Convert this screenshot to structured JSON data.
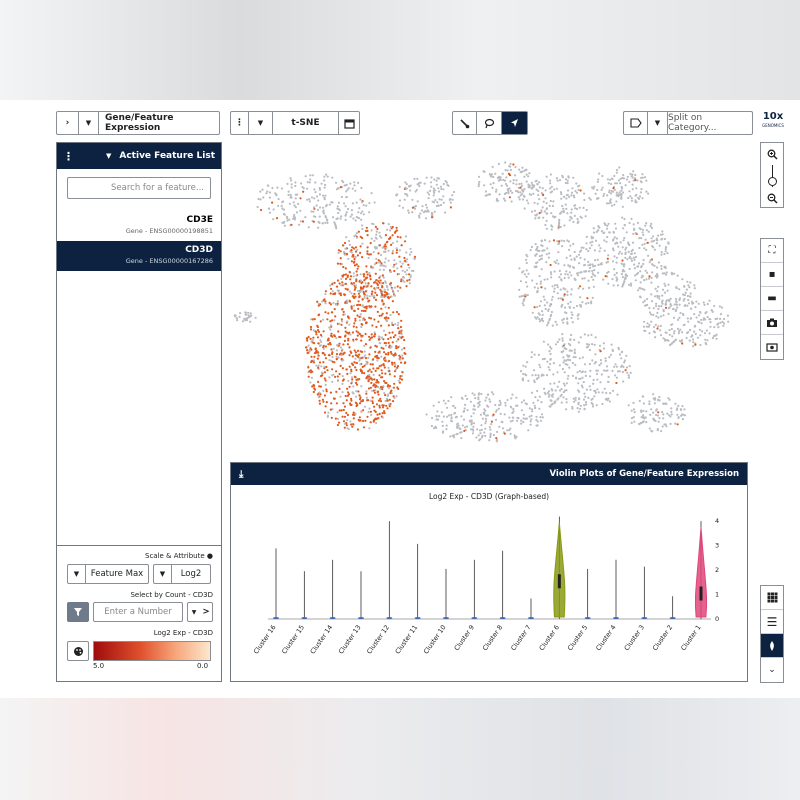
{
  "colors": {
    "navy": "#0d2240",
    "highlight": "#e05a1e",
    "point": "#b9bcc1",
    "cluster1": "#e0457a",
    "cluster6": "#8a9a14"
  },
  "toolbar": {
    "projection_label": "Gene/Feature Expression",
    "plot_type_label": "t-SNE",
    "split_placeholder": "Split on Category...",
    "logo_top": "10x",
    "logo_bottom": "GENOMICS"
  },
  "active_features": {
    "title": "Active Feature List",
    "search_placeholder": "Search for a feature...",
    "items": [
      {
        "name": "CD3E",
        "sub": "Gene - ENSG00000198851"
      },
      {
        "name": "CD3D",
        "sub": "Gene - ENSG00000167286"
      }
    ]
  },
  "controls": {
    "scale_label": "Scale & Attribute",
    "scale_value": "Log2",
    "attribute_value": "Feature Max",
    "select_label": "Select by Count - CD3D",
    "number_placeholder": "Enter a Number",
    "operator": ">",
    "legend_label": "Log2 Exp - CD3D",
    "legend_min": "0.0",
    "legend_max": "5.0"
  },
  "violin": {
    "panel_title": "Violin Plots of Gene/Feature Expression",
    "chart_title": "Log2 Exp - CD3D (Graph-based)"
  },
  "chart_data": {
    "type": "violin",
    "title": "Log2 Exp - CD3D (Graph-based)",
    "ylim": [
      0,
      4
    ],
    "yticks": [
      "0",
      "1",
      "2",
      "3",
      "4"
    ],
    "categories": [
      "Cluster 1",
      "Cluster 2",
      "Cluster 3",
      "Cluster 4",
      "Cluster 5",
      "Cluster 6",
      "Cluster 7",
      "Cluster 8",
      "Cluster 9",
      "Cluster 10",
      "Cluster 11",
      "Cluster 12",
      "Cluster 13",
      "Cluster 14",
      "Cluster 15",
      "Cluster 16"
    ],
    "max_values": [
      4.3,
      1.0,
      2.3,
      2.6,
      2.2,
      4.5,
      0.9,
      3.0,
      2.6,
      2.2,
      3.3,
      4.3,
      2.1,
      2.6,
      2.1,
      3.1
    ],
    "median_values": [
      1.0,
      0,
      0,
      0,
      0,
      1.5,
      0,
      0,
      0,
      0,
      0,
      0,
      0,
      0,
      0,
      0
    ],
    "highlighted": [
      "Cluster 1",
      "Cluster 6"
    ]
  }
}
